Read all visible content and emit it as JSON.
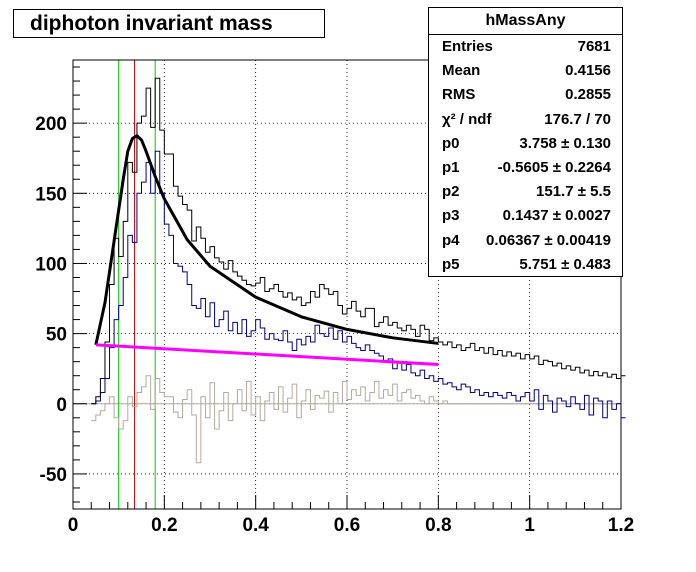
{
  "title": "diphoton invariant mass",
  "stats": {
    "name": "hMassAny",
    "rows": [
      {
        "key": "Entries",
        "value": "7681"
      },
      {
        "key": "Mean",
        "value": "0.4156"
      },
      {
        "key": "RMS",
        "value": "0.2855"
      },
      {
        "key": "χ² / ndf",
        "value": "176.7 / 70"
      },
      {
        "key": "p0",
        "value": "3.758 ± 0.130"
      },
      {
        "key": "p1",
        "value": "-0.5605 ± 0.2264"
      },
      {
        "key": "p2",
        "value": "151.7 ± 5.5"
      },
      {
        "key": "p3",
        "value": "0.1437 ± 0.0027"
      },
      {
        "key": "p4",
        "value": "0.06367 ± 0.00419"
      },
      {
        "key": "p5",
        "value": "5.751 ± 0.483"
      }
    ]
  },
  "chart_data": {
    "type": "line",
    "xlim": [
      0,
      1.2
    ],
    "ylim": [
      -75,
      245
    ],
    "xticks": [
      "0",
      "0.2",
      "0.4",
      "0.6",
      "0.8",
      "1",
      "1.2"
    ],
    "yticks": [
      "-50",
      "0",
      "50",
      "100",
      "150",
      "200"
    ],
    "ytick_values": [
      -50,
      0,
      50,
      100,
      150,
      200
    ],
    "grid": true,
    "bin_width": 0.01,
    "bin_start": 0.04,
    "vertical_markers": [
      {
        "x": 0.1,
        "color": "#00cc00"
      },
      {
        "x": 0.1348,
        "color": "#cc0000"
      },
      {
        "x": 0.18,
        "color": "#00cc00"
      }
    ],
    "series": [
      {
        "color": "#000000",
        "values": [
          0,
          5,
          18,
          44,
          85,
          118,
          105,
          130,
          172,
          165,
          200,
          205,
          225,
          197,
          232,
          195,
          178,
          178,
          155,
          148,
          142,
          138,
          116,
          126,
          118,
          108,
          112,
          104,
          101,
          96,
          102,
          94,
          91,
          88,
          85,
          84,
          86,
          90,
          80,
          82,
          85,
          80,
          76,
          79,
          74,
          76,
          70,
          72,
          80,
          76,
          85,
          82,
          78,
          80,
          70,
          64,
          68,
          73,
          66,
          62,
          68,
          68,
          55,
          58,
          62,
          56,
          58,
          54,
          52,
          56,
          53,
          48,
          56,
          53,
          45,
          47,
          44,
          42,
          44,
          40,
          42,
          38,
          40,
          43,
          38,
          40,
          36,
          40,
          35,
          38,
          34,
          37,
          34,
          36,
          32,
          35,
          32,
          34,
          28,
          31,
          30,
          27,
          29,
          25,
          27,
          24,
          26,
          22,
          24,
          20,
          23,
          20,
          22,
          19,
          21,
          18,
          20
        ]
      },
      {
        "color": "#00008b",
        "values": [
          0,
          2,
          8,
          18,
          40,
          60,
          70,
          90,
          120,
          115,
          150,
          158,
          172,
          150,
          180,
          150,
          128,
          120,
          100,
          98,
          94,
          85,
          70,
          68,
          75,
          62,
          72,
          55,
          60,
          66,
          52,
          58,
          50,
          60,
          48,
          52,
          60,
          54,
          46,
          50,
          46,
          45,
          52,
          44,
          38,
          46,
          42,
          48,
          44,
          56,
          50,
          48,
          54,
          46,
          52,
          44,
          48,
          43,
          40,
          38,
          42,
          38,
          36,
          34,
          30,
          32,
          25,
          30,
          24,
          28,
          22,
          20,
          24,
          18,
          20,
          16,
          18,
          14,
          15,
          12,
          10,
          14,
          12,
          8,
          10,
          6,
          8,
          5,
          8,
          6,
          4,
          8,
          6,
          2,
          5,
          8,
          2,
          10,
          -4,
          6,
          2,
          -6,
          4,
          2,
          -2,
          5,
          0,
          -4,
          6,
          -8,
          4,
          2,
          -10,
          2,
          -4,
          0,
          -10
        ]
      },
      {
        "color": "#b4aa9c",
        "values": [
          -12,
          -8,
          -5,
          0,
          5,
          -10,
          -18,
          -12,
          5,
          -2,
          8,
          12,
          20,
          -4,
          18,
          8,
          5,
          5,
          -6,
          -10,
          3,
          10,
          -8,
          -42,
          5,
          -10,
          15,
          -18,
          -5,
          8,
          -12,
          0,
          10,
          -5,
          16,
          -8,
          5,
          -12,
          2,
          8,
          -4,
          12,
          -6,
          4,
          14,
          -10,
          2,
          10,
          -4,
          6,
          4,
          9,
          -6,
          8,
          0,
          16,
          3,
          10,
          6,
          12,
          2,
          8,
          16,
          4,
          10,
          6,
          14,
          2,
          8,
          10,
          4,
          6,
          2,
          0,
          5,
          2,
          0,
          2,
          0,
          0,
          0,
          0,
          0,
          0,
          0,
          0,
          0,
          0,
          0,
          0,
          0,
          0,
          0,
          0,
          0,
          0,
          0,
          0,
          0,
          0,
          0,
          0,
          0,
          0,
          0,
          0,
          0,
          0,
          0,
          0,
          0,
          0,
          0,
          0,
          0,
          0
        ]
      },
      {
        "color": "#000000",
        "name": "",
        "x": [
          0.05,
          0.07,
          0.09,
          0.11,
          0.12,
          0.13,
          0.14,
          0.15,
          0.16,
          0.18,
          0.2,
          0.25,
          0.3,
          0.4,
          0.5,
          0.6,
          0.7,
          0.8
        ],
        "values": [
          42,
          72,
          116,
          160,
          180,
          189,
          191,
          188,
          180,
          162,
          146,
          117,
          98,
          76,
          62,
          53,
          47,
          43
        ]
      },
      {
        "color": "#ff00ff",
        "x": [
          0.05,
          0.8
        ],
        "values": [
          42,
          28
        ]
      }
    ]
  }
}
